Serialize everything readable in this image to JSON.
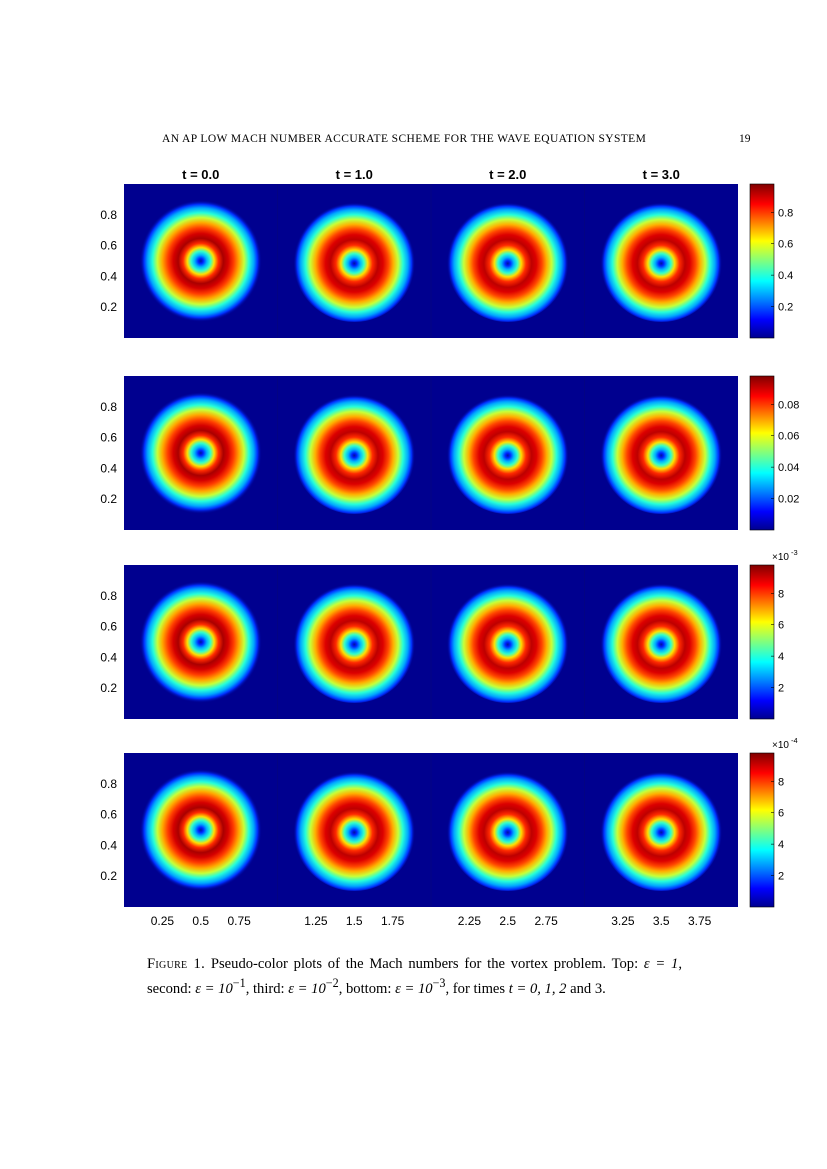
{
  "running_head": {
    "title": "AN AP LOW MACH NUMBER ACCURATE SCHEME FOR THE WAVE EQUATION SYSTEM",
    "page_number": "19"
  },
  "figure": {
    "time_labels": [
      "t = 0.0",
      "t = 1.0",
      "t = 2.0",
      "t = 3.0"
    ],
    "y_ticks": [
      "0.8",
      "0.6",
      "0.4",
      "0.2"
    ],
    "x_ticks": [
      [
        "0.25",
        "0.5",
        "0.75"
      ],
      [
        "1.25",
        "1.5",
        "1.75"
      ],
      [
        "2.25",
        "2.5",
        "2.75"
      ],
      [
        "3.25",
        "3.5",
        "3.75"
      ]
    ],
    "colormap": "jet",
    "rows": [
      {
        "epsilon": "1",
        "colorbar_ticks": [
          "0.8",
          "0.6",
          "0.4",
          "0.2"
        ],
        "colorbar_multiplier": ""
      },
      {
        "epsilon": "10^-1",
        "colorbar_ticks": [
          "0.08",
          "0.06",
          "0.04",
          "0.02"
        ],
        "colorbar_multiplier": ""
      },
      {
        "epsilon": "10^-2",
        "colorbar_ticks": [
          "8",
          "6",
          "4",
          "2"
        ],
        "colorbar_multiplier": "×10",
        "colorbar_exponent": "-3"
      },
      {
        "epsilon": "10^-3",
        "colorbar_ticks": [
          "8",
          "6",
          "4",
          "2"
        ],
        "colorbar_multiplier": "×10",
        "colorbar_exponent": "-4"
      }
    ]
  },
  "caption": {
    "label": "Figure 1.",
    "text_1": "Pseudo-color plots of the Mach numbers for the vortex problem. Top:",
    "eps_top": "ε = 1",
    "text_2": ", second:",
    "eps_second": "ε = 10",
    "eps_second_exp": "−1",
    "text_3": ", third:",
    "eps_third": "ε = 10",
    "eps_third_exp": "−2",
    "text_4": ", bottom:",
    "eps_bottom": "ε = 10",
    "eps_bottom_exp": "−3",
    "text_5": ", for times",
    "times": "t = 0, 1, 2",
    "text_6": "and 3."
  }
}
